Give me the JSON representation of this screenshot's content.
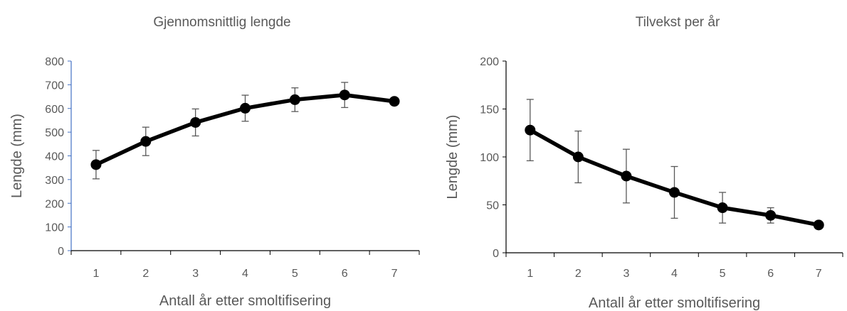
{
  "chart_data": [
    {
      "type": "line",
      "title": "Gjennomsnittlig lengde",
      "xlabel": "Antall år etter smoltifisering",
      "ylabel": "Lengde (mm)",
      "x": [
        1,
        2,
        3,
        4,
        5,
        6,
        7
      ],
      "x_ticks": [
        "1",
        "2",
        "3",
        "4",
        "5",
        "6",
        "7"
      ],
      "y_ticks": [
        "0",
        "100",
        "200",
        "300",
        "400",
        "500",
        "600",
        "700",
        "800"
      ],
      "ylim": [
        0,
        800
      ],
      "grid": false,
      "series": [
        {
          "values": [
            363,
            461,
            541,
            601,
            637,
            657,
            630
          ],
          "error": [
            60,
            60,
            57,
            55,
            50,
            53,
            null
          ],
          "color": "#000000"
        }
      ],
      "y_axis_color": "#4472C4"
    },
    {
      "type": "line",
      "title": "Tilvekst per år",
      "xlabel": "Antall år etter smoltifisering",
      "ylabel": "Lengde (mm)",
      "x": [
        1,
        2,
        3,
        4,
        5,
        6,
        7
      ],
      "x_ticks": [
        "1",
        "2",
        "3",
        "4",
        "5",
        "6",
        "7"
      ],
      "y_ticks": [
        "0",
        "50",
        "100",
        "150",
        "200"
      ],
      "ylim": [
        0,
        200
      ],
      "grid": false,
      "series": [
        {
          "values": [
            128,
            100,
            80,
            63,
            47,
            39,
            29
          ],
          "error": [
            32,
            27,
            28,
            27,
            16,
            8,
            null
          ],
          "color": "#000000"
        }
      ],
      "y_axis_color": "#000000"
    }
  ]
}
